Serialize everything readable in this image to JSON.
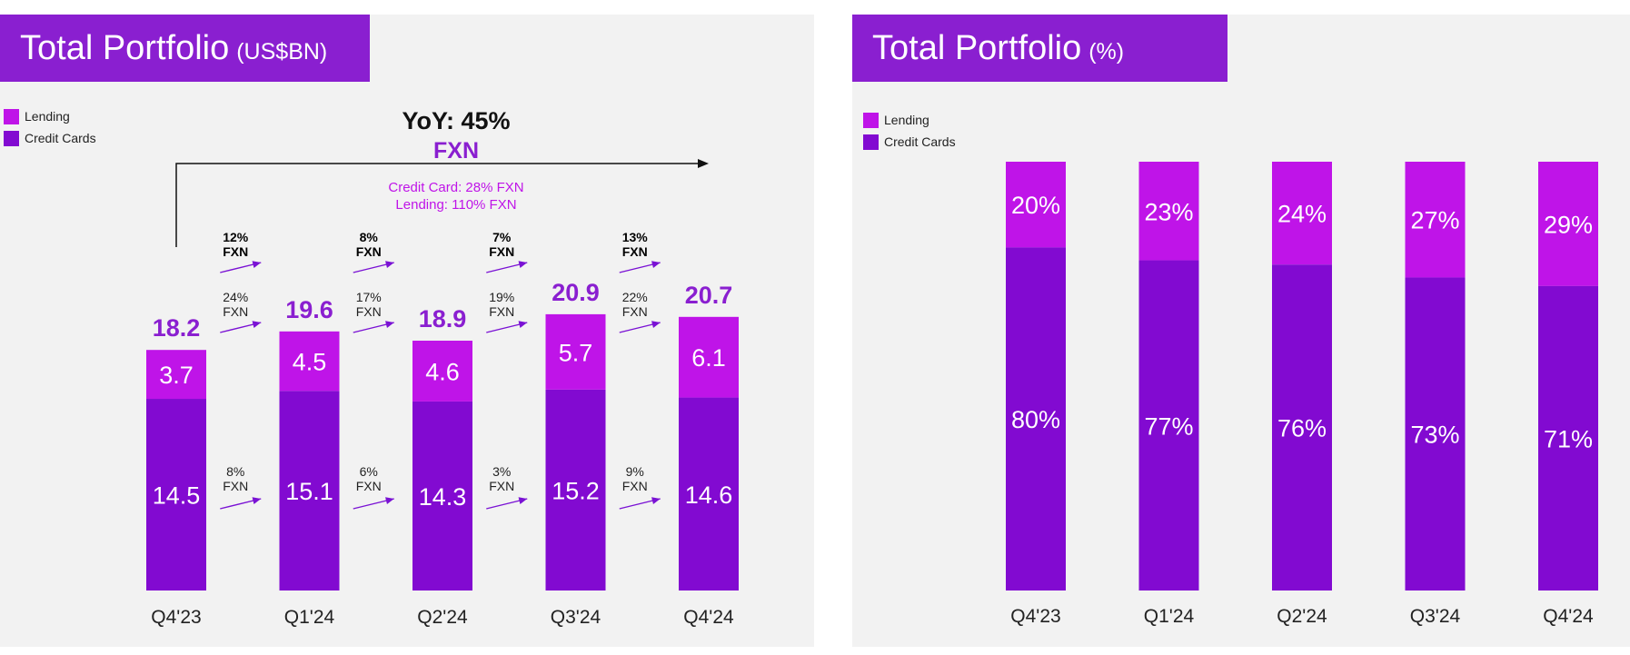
{
  "colors": {
    "title_bg": "#8a1fd0",
    "lending": "#bf14e8",
    "credit_cards": "#820ad1",
    "annotation": "#8a1fd0",
    "arrow": "#7a12d4"
  },
  "left": {
    "title": "Total Portfolio",
    "unit": "(US$BN)",
    "legend": [
      {
        "label": "Lending",
        "color": "#bf14e8"
      },
      {
        "label": "Credit Cards",
        "color": "#820ad1"
      }
    ],
    "yoy": {
      "line1": "YoY: 45%",
      "line2": "FXN"
    },
    "growth_note": {
      "credit": "Credit Card: 28% FXN",
      "lending": "Lending: 110% FXN"
    }
  },
  "right": {
    "title": "Total Portfolio",
    "unit": "(%)",
    "legend": [
      {
        "label": "Lending",
        "color": "#bf14e8"
      },
      {
        "label": "Credit Cards",
        "color": "#820ad1"
      }
    ]
  },
  "chart_data": [
    {
      "type": "bar",
      "stacked": true,
      "title": "Total Portfolio (US$BN)",
      "categories": [
        "Q4'23",
        "Q1'24",
        "Q2'24",
        "Q3'24",
        "Q4'24"
      ],
      "series": [
        {
          "name": "Credit Cards",
          "values": [
            14.5,
            15.1,
            14.3,
            15.2,
            14.6
          ]
        },
        {
          "name": "Lending",
          "values": [
            3.7,
            4.5,
            4.6,
            5.7,
            6.1
          ]
        }
      ],
      "totals": [
        18.2,
        19.6,
        18.9,
        20.9,
        20.7
      ],
      "qoq_growth": {
        "total": [
          "12%\nFXN",
          "8%\nFXN",
          "7%\nFXN",
          "13%\nFXN"
        ],
        "lending": [
          "24%\nFXN",
          "17%\nFXN",
          "19%\nFXN",
          "22%\nFXN"
        ],
        "credit_cards": [
          "8%\nFXN",
          "6%\nFXN",
          "3%\nFXN",
          "9%\nFXN"
        ]
      },
      "ylim": [
        0,
        22
      ]
    },
    {
      "type": "bar",
      "stacked": true,
      "title": "Total Portfolio (%)",
      "categories": [
        "Q4'23",
        "Q1'24",
        "Q2'24",
        "Q3'24",
        "Q4'24"
      ],
      "series": [
        {
          "name": "Credit Cards",
          "values": [
            80,
            77,
            76,
            73,
            71
          ]
        },
        {
          "name": "Lending",
          "values": [
            20,
            23,
            24,
            27,
            29
          ]
        }
      ],
      "ylim": [
        0,
        100
      ]
    }
  ]
}
